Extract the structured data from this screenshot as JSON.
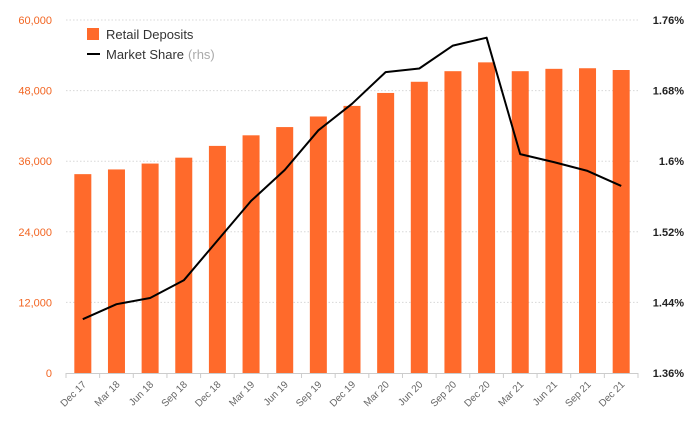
{
  "chart_data": {
    "type": "bar",
    "categories": [
      "Dec 17",
      "Mar 18",
      "Jun 18",
      "Sep 18",
      "Dec 18",
      "Mar 19",
      "Jun 19",
      "Sep 19",
      "Dec 19",
      "Mar 20",
      "Jun 20",
      "Sep 20",
      "Dec 20",
      "Mar 21",
      "Jun 21",
      "Sep 21",
      "Dec 21"
    ],
    "series": [
      {
        "name": "Retail Deposits",
        "type": "bar",
        "axis": "left",
        "color": "#ff6a2b",
        "values": [
          33800,
          34600,
          35600,
          36600,
          38600,
          40400,
          41800,
          43600,
          45400,
          47600,
          49500,
          51300,
          52800,
          51300,
          51700,
          51800,
          51500
        ]
      },
      {
        "name": "Market Share",
        "note": "(rhs)",
        "type": "line",
        "axis": "right",
        "color": "#000000",
        "values": [
          1.421,
          1.438,
          1.445,
          1.465,
          1.51,
          1.555,
          1.59,
          1.635,
          1.665,
          1.701,
          1.705,
          1.731,
          1.74,
          1.608,
          1.599,
          1.589,
          1.572
        ]
      }
    ],
    "left_axis": {
      "range": [
        0,
        60000
      ],
      "ticks": [
        0,
        12000,
        24000,
        36000,
        48000,
        60000
      ],
      "tick_labels": [
        "0",
        "12,000",
        "24,000",
        "36,000",
        "48,000",
        "60,000"
      ],
      "color": "#f26522"
    },
    "right_axis": {
      "range": [
        1.36,
        1.76
      ],
      "ticks": [
        1.36,
        1.44,
        1.52,
        1.6,
        1.68,
        1.76
      ],
      "tick_labels": [
        "1.36%",
        "1.44%",
        "1.52%",
        "1.6%",
        "1.68%",
        "1.76%"
      ]
    },
    "grid": true,
    "legend": "top-left",
    "title": "",
    "xlabel": "",
    "ylabel": ""
  }
}
